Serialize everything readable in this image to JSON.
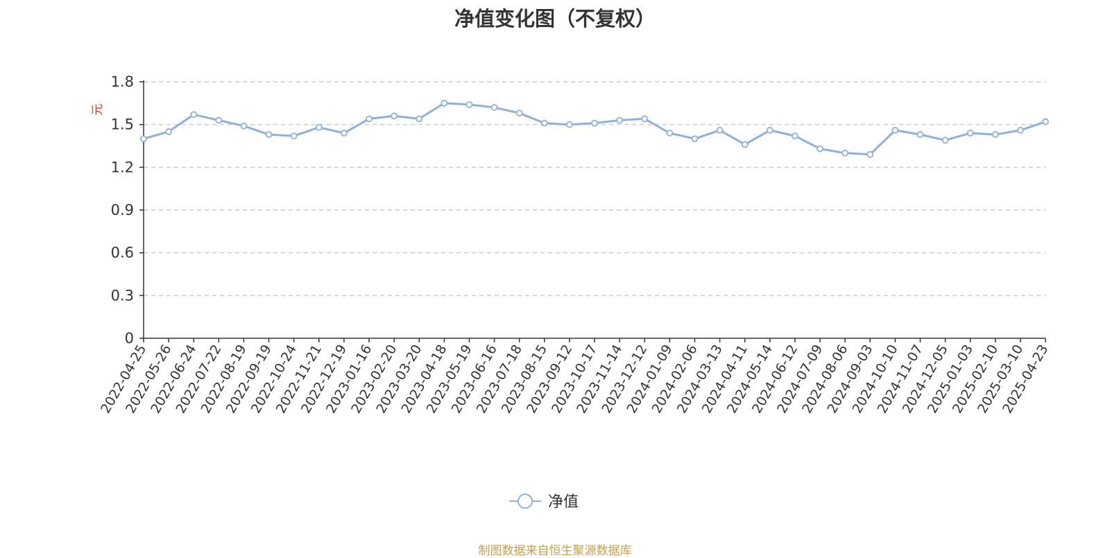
{
  "chart_data": {
    "type": "line",
    "title": "净值变化图（不复权）",
    "ylabel": "元",
    "ylim": [
      0,
      1.8
    ],
    "yticks": [
      "0",
      "0.3",
      "0.6",
      "0.9",
      "1.2",
      "1.5",
      "1.8"
    ],
    "categories": [
      "2022-04-25",
      "2022-05-26",
      "2022-06-24",
      "2022-07-22",
      "2022-08-19",
      "2022-09-19",
      "2022-10-24",
      "2022-11-21",
      "2022-12-19",
      "2023-01-16",
      "2023-02-20",
      "2023-03-20",
      "2023-04-18",
      "2023-05-19",
      "2023-06-16",
      "2023-07-18",
      "2023-08-15",
      "2023-09-12",
      "2023-10-17",
      "2023-11-14",
      "2023-12-12",
      "2024-01-09",
      "2024-02-06",
      "2024-03-13",
      "2024-04-11",
      "2024-05-14",
      "2024-06-12",
      "2024-07-09",
      "2024-08-06",
      "2024-09-03",
      "2024-10-10",
      "2024-11-07",
      "2024-12-05",
      "2025-01-03",
      "2025-02-10",
      "2025-03-10",
      "2025-04-23"
    ],
    "grid": true,
    "legend_position": "bottom-center",
    "series": [
      {
        "name": "净值",
        "color": "#8eb0dc",
        "values": [
          1.4,
          1.45,
          1.57,
          1.53,
          1.49,
          1.43,
          1.42,
          1.48,
          1.44,
          1.54,
          1.56,
          1.54,
          1.65,
          1.64,
          1.62,
          1.58,
          1.51,
          1.5,
          1.51,
          1.53,
          1.54,
          1.44,
          1.4,
          1.46,
          1.36,
          1.46,
          1.42,
          1.33,
          1.3,
          1.29,
          1.46,
          1.43,
          1.39,
          1.44,
          1.43,
          1.46,
          1.52
        ]
      }
    ]
  },
  "source_note": "制图数据来自恒生聚源数据库"
}
